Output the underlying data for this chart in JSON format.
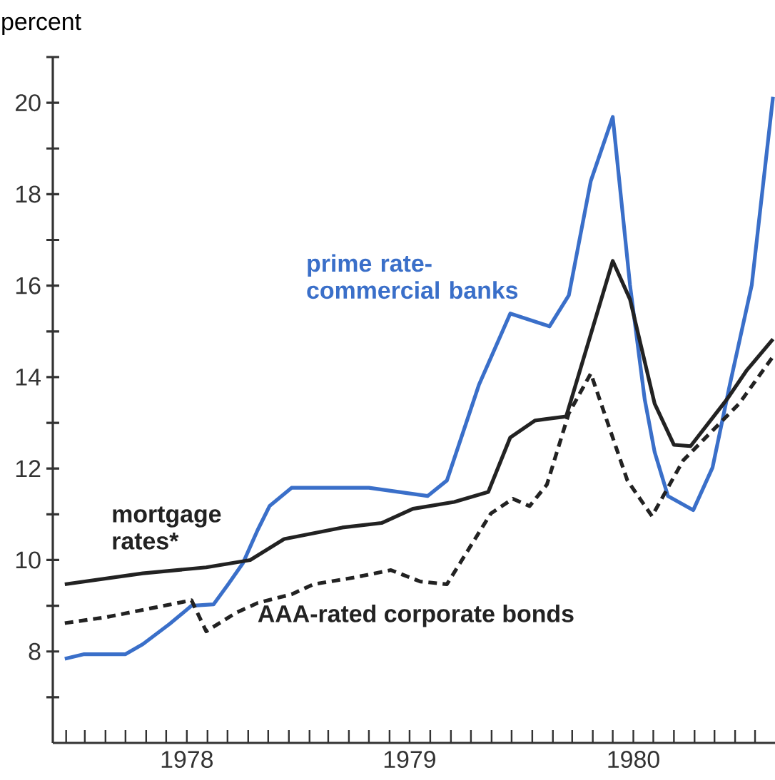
{
  "chart_data": {
    "type": "line",
    "ylabel": "percent",
    "xlim": [
      "1978-01-12",
      "1980-12-31"
    ],
    "ylim": [
      6,
      21
    ],
    "xticks": [
      {
        "value": "1978-02-01",
        "label": null
      },
      {
        "value": "1978-03-01",
        "label": null
      },
      {
        "value": "1978-04-01",
        "label": null
      },
      {
        "value": "1978-05-01",
        "label": null
      },
      {
        "value": "1978-06-01",
        "label": null
      },
      {
        "value": "1978-07-01",
        "label": null
      },
      {
        "value": "1978-08-01",
        "label": "1978"
      },
      {
        "value": "1978-09-01",
        "label": null
      },
      {
        "value": "1978-10-01",
        "label": null
      },
      {
        "value": "1978-11-01",
        "label": null
      },
      {
        "value": "1978-12-01",
        "label": null
      },
      {
        "value": "1979-01-01",
        "label": null
      },
      {
        "value": "1979-02-01",
        "label": null
      },
      {
        "value": "1979-03-01",
        "label": null
      },
      {
        "value": "1979-04-01",
        "label": null
      },
      {
        "value": "1979-05-01",
        "label": null
      },
      {
        "value": "1979-06-01",
        "label": null
      },
      {
        "value": "1979-07-01",
        "label": "1979"
      },
      {
        "value": "1979-08-01",
        "label": null
      },
      {
        "value": "1979-09-01",
        "label": null
      },
      {
        "value": "1979-10-01",
        "label": null
      },
      {
        "value": "1979-11-01",
        "label": null
      },
      {
        "value": "1979-12-01",
        "label": null
      },
      {
        "value": "1980-01-01",
        "label": null
      },
      {
        "value": "1980-02-01",
        "label": null
      },
      {
        "value": "1980-03-01",
        "label": null
      },
      {
        "value": "1980-04-01",
        "label": null
      },
      {
        "value": "1980-05-01",
        "label": null
      },
      {
        "value": "1980-06-01",
        "label": "1980"
      },
      {
        "value": "1980-07-01",
        "label": null
      },
      {
        "value": "1980-08-01",
        "label": null
      },
      {
        "value": "1980-09-01",
        "label": null
      },
      {
        "value": "1980-10-01",
        "label": null
      },
      {
        "value": "1980-11-01",
        "label": null
      },
      {
        "value": "1980-12-01",
        "label": null
      }
    ],
    "yticks": [
      {
        "value": 7,
        "label": null
      },
      8,
      {
        "value": 9,
        "label": null
      },
      10,
      {
        "value": 11,
        "label": null
      },
      12,
      {
        "value": 13,
        "label": null
      },
      14,
      {
        "value": 15,
        "label": null
      },
      16,
      {
        "value": 17,
        "label": null
      },
      18,
      {
        "value": 19,
        "label": null
      },
      20,
      {
        "value": 21,
        "label": null
      }
    ],
    "series": [
      {
        "name": "prime rate-commercial banks",
        "color": "#3a6fc9",
        "line_style": "solid",
        "x": [
          "1978-01-30",
          "1978-02-28",
          "1978-05-01",
          "1978-05-27",
          "1978-07-06",
          "1978-08-08",
          "1978-09-10",
          "1978-10-02",
          "1978-10-24",
          "1978-11-15",
          "1978-12-03",
          "1979-01-05",
          "1979-01-27",
          "1979-05-01",
          "1979-07-28",
          "1979-08-26",
          "1979-10-13",
          "1979-11-29",
          "1980-01-27",
          "1980-02-25",
          "1980-03-29",
          "1980-05-01",
          "1980-05-27",
          "1980-06-18",
          "1980-07-03",
          "1980-07-23",
          "1980-08-30",
          "1980-09-28",
          "1980-10-24",
          "1980-11-26",
          "1980-12-28"
        ],
        "values": [
          7.84,
          7.94,
          7.94,
          8.16,
          8.6,
          9.0,
          9.03,
          9.47,
          9.93,
          10.65,
          11.18,
          11.58,
          11.58,
          11.58,
          11.4,
          11.74,
          13.83,
          15.39,
          15.11,
          15.79,
          18.29,
          19.69,
          16.01,
          13.52,
          12.36,
          11.4,
          11.09,
          12.02,
          13.83,
          16.01,
          20.13
        ]
      },
      {
        "name": "mortgage rates*",
        "color": "#222222",
        "line_style": "solid",
        "x": [
          "1978-01-30",
          "1978-05-27",
          "1978-08-30",
          "1978-11-04",
          "1978-12-25",
          "1979-03-22",
          "1979-05-20",
          "1979-07-06",
          "1979-09-06",
          "1979-10-27",
          "1979-11-29",
          "1980-01-05",
          "1980-02-21",
          "1980-05-01",
          "1980-05-27",
          "1980-07-03",
          "1980-08-01",
          "1980-08-26",
          "1980-10-20",
          "1980-11-18",
          "1980-12-28"
        ],
        "values": [
          9.47,
          9.71,
          9.84,
          10.0,
          10.46,
          10.71,
          10.81,
          11.12,
          11.27,
          11.49,
          12.68,
          13.05,
          13.14,
          16.54,
          15.7,
          13.42,
          12.52,
          12.49,
          13.52,
          14.14,
          14.83
        ]
      },
      {
        "name": "AAA-rated corporate bonds",
        "color": "#222222",
        "line_style": "dashed",
        "x": [
          "1978-01-30",
          "1978-04-02",
          "1978-08-08",
          "1978-08-30",
          "1978-10-13",
          "1978-11-15",
          "1979-01-05",
          "1979-02-07",
          "1979-04-10",
          "1979-06-03",
          "1979-07-17",
          "1979-08-26",
          "1979-10-31",
          "1979-12-03",
          "1979-12-28",
          "1980-01-23",
          "1980-02-25",
          "1980-03-29",
          "1980-05-23",
          "1980-06-29",
          "1980-08-15",
          "1980-11-07",
          "1980-12-28"
        ],
        "values": [
          8.62,
          8.75,
          9.12,
          8.44,
          8.84,
          9.06,
          9.25,
          9.47,
          9.62,
          9.78,
          9.53,
          9.47,
          11.02,
          11.34,
          11.18,
          11.65,
          13.21,
          14.08,
          11.74,
          10.96,
          12.18,
          13.42,
          14.45
        ]
      }
    ]
  }
}
